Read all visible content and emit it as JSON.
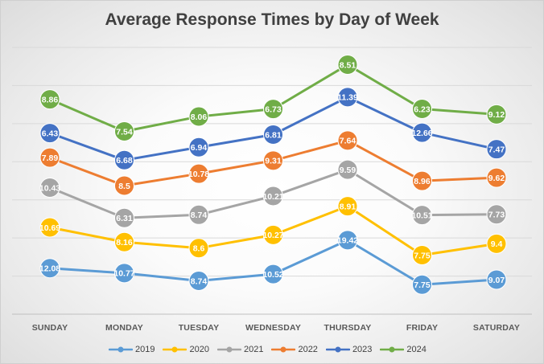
{
  "chart_data": {
    "type": "line",
    "title": "Average Response Times by Day of Week",
    "categories": [
      "SUNDAY",
      "MONDAY",
      "TUESDAY",
      "WEDNESDAY",
      "THURSDAY",
      "FRIDAY",
      "SATURDAY"
    ],
    "stacked": true,
    "grid": true,
    "legend_position": "bottom",
    "y_axis_labels": false,
    "series": [
      {
        "name": "2019",
        "color": "#5B9BD5",
        "values": [
          12.08,
          10.77,
          8.74,
          10.52,
          19.42,
          7.75,
          9.07
        ]
      },
      {
        "name": "2020",
        "color": "#FFC000",
        "values": [
          10.69,
          8.16,
          8.6,
          10.27,
          8.91,
          7.75,
          9.4
        ]
      },
      {
        "name": "2021",
        "color": "#A5A5A5",
        "values": [
          10.43,
          6.31,
          8.74,
          10.21,
          9.59,
          10.51,
          7.73
        ]
      },
      {
        "name": "2022",
        "color": "#ED7D31",
        "values": [
          7.89,
          8.5,
          10.78,
          9.31,
          7.64,
          8.96,
          9.62
        ]
      },
      {
        "name": "2023",
        "color": "#4472C4",
        "values": [
          6.43,
          6.68,
          6.94,
          6.81,
          11.39,
          12.66,
          7.47
        ]
      },
      {
        "name": "2024",
        "color": "#70AD47",
        "values": [
          8.86,
          7.54,
          8.06,
          6.73,
          8.51,
          6.23,
          9.12
        ]
      }
    ]
  }
}
